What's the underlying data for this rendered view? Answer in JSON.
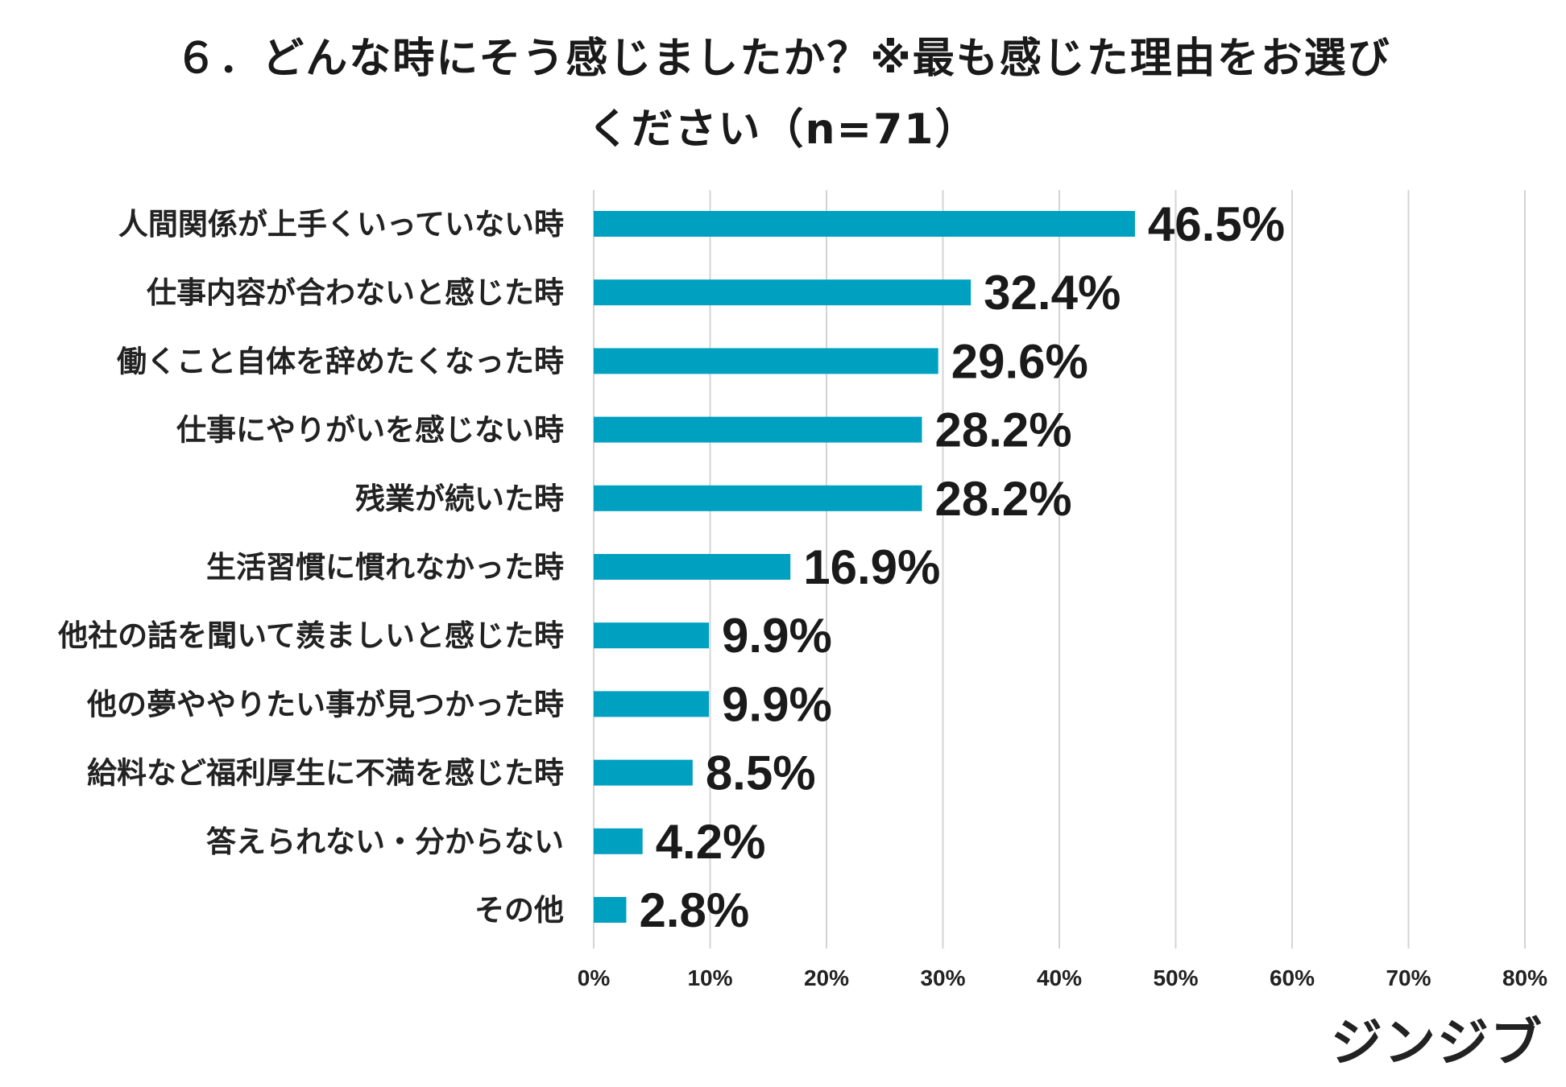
{
  "chart_data": {
    "type": "bar",
    "orientation": "horizontal",
    "title_line1": "６．どんな時にそう感じましたか？※最も感じた理由をお選び",
    "title_line2": "ください（n=71）",
    "categories": [
      "人間関係が上手くいっていない時",
      "仕事内容が合わないと感じた時",
      "働くこと自体を辞めたくなった時",
      "仕事にやりがいを感じない時",
      "残業が続いた時",
      "生活習慣に慣れなかった時",
      "他社の話を聞いて羨ましいと感じた時",
      "他の夢ややりたい事が見つかった時",
      "給料など福利厚生に不満を感じた時",
      "答えられない・分からない",
      "その他"
    ],
    "values": [
      46.5,
      32.4,
      29.6,
      28.2,
      28.2,
      16.9,
      9.9,
      9.9,
      8.5,
      4.2,
      2.8
    ],
    "value_labels": [
      "46.5%",
      "32.4%",
      "29.6%",
      "28.2%",
      "28.2%",
      "16.9%",
      "9.9%",
      "9.9%",
      "8.5%",
      "4.2%",
      "2.8%"
    ],
    "xlim": [
      0,
      80
    ],
    "xticks": [
      "0%",
      "10%",
      "20%",
      "30%",
      "40%",
      "50%",
      "60%",
      "70%",
      "80%"
    ],
    "grid": true,
    "bar_color": "#00a0c0"
  },
  "logo": "ジンジブ"
}
